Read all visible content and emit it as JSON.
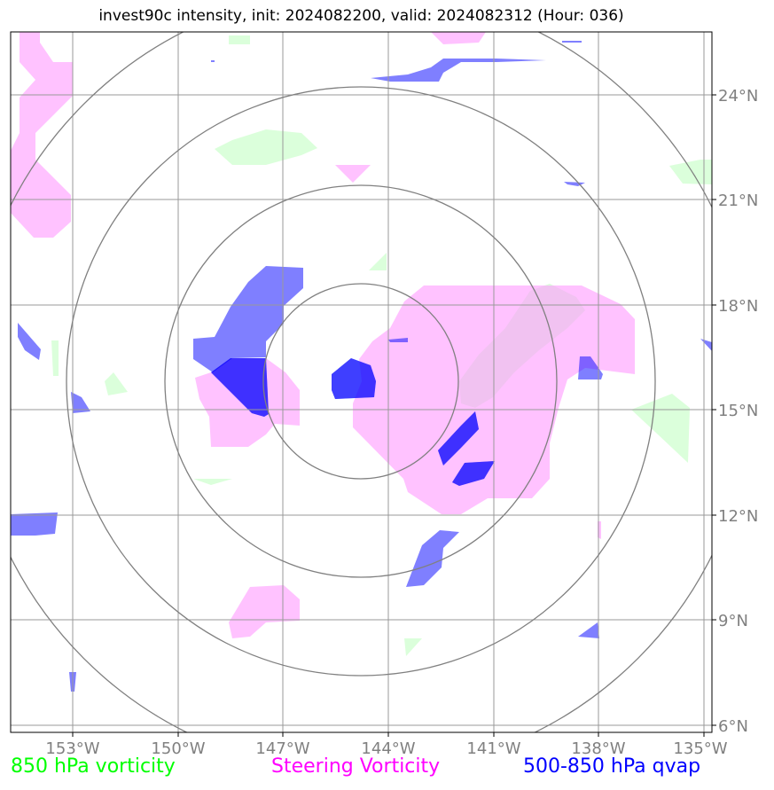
{
  "title": "invest90c intensity, init: 2024082200, valid: 2024082312 (Hour: 036)",
  "lon_ticks": [
    "153°W",
    "150°W",
    "147°W",
    "144°W",
    "141°W",
    "138°W",
    "135°W"
  ],
  "lat_ticks": [
    "6°N",
    "9°N",
    "12°N",
    "15°N",
    "18°N",
    "21°N",
    "24°N"
  ],
  "legend": {
    "vort850": "850 hPa vorticity",
    "steering": "Steering Vorticity",
    "qvap": "500-850 hPa qvap"
  },
  "colors": {
    "vort850": "#00ff00",
    "steering": "#ff00ff",
    "qvap": "#0000ff",
    "grid": "#808080",
    "tick_text": "#808080"
  }
}
